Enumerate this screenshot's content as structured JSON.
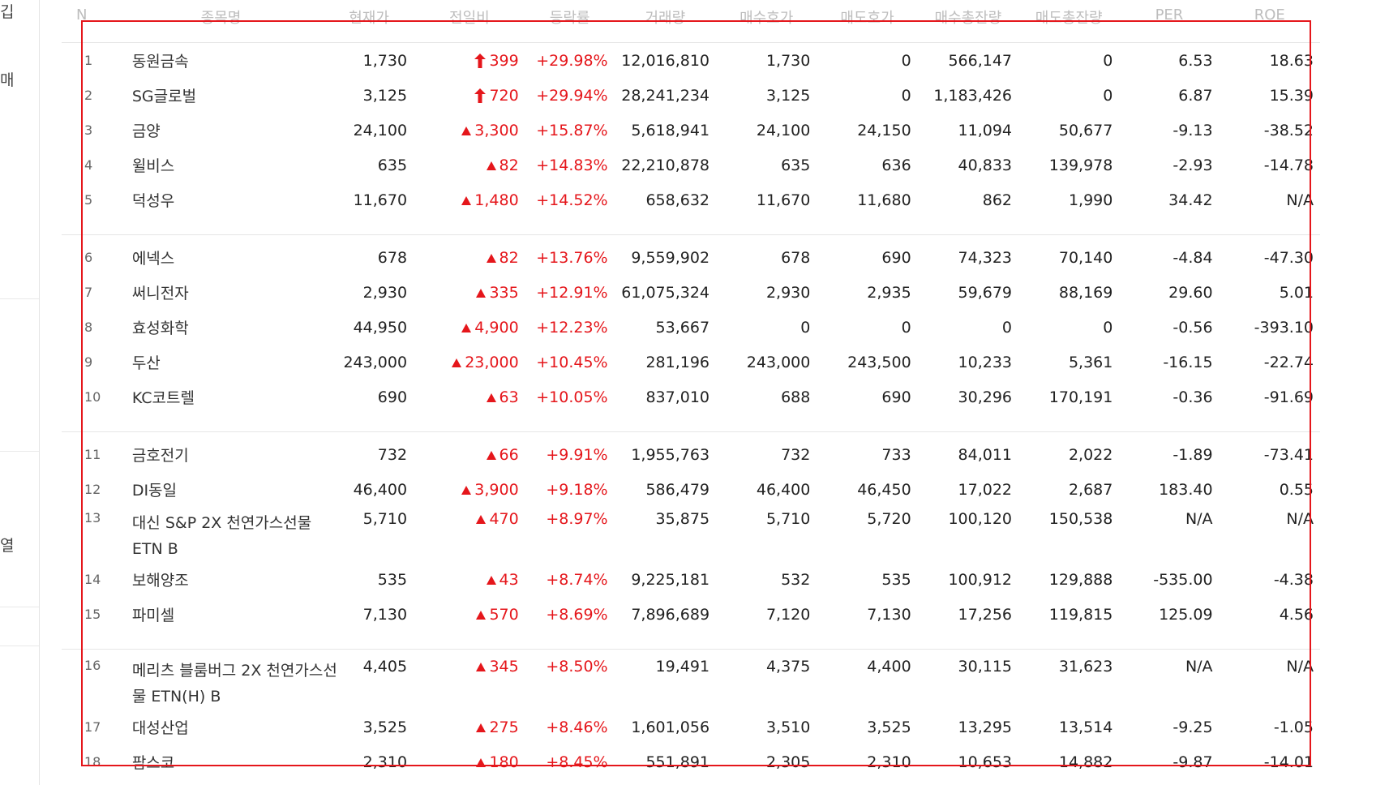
{
  "left_panel": {
    "fragments": [
      "깁",
      "매",
      "열"
    ]
  },
  "columns": [
    "N",
    "종목명",
    "현재가",
    "전일비",
    "등락률",
    "거래량",
    "매수호가",
    "매도호가",
    "매수총잔량",
    "매도총잔량",
    "PER",
    "ROE"
  ],
  "colors": {
    "up": "#e5161b",
    "highlight": "#e5161b",
    "header_text": "#bdbdbd"
  },
  "groups": [
    [
      {
        "n": "1",
        "name": "동원금속",
        "price": "1,730",
        "change": "399",
        "change_icon": "limit-up-arrow-icon",
        "rate": "+29.98%",
        "volume": "12,016,810",
        "bid": "1,730",
        "ask": "0",
        "bid_qty": "566,147",
        "ask_qty": "0",
        "per": "6.53",
        "roe": "18.63"
      },
      {
        "n": "2",
        "name": "SG글로벌",
        "price": "3,125",
        "change": "720",
        "change_icon": "limit-up-arrow-icon",
        "rate": "+29.94%",
        "volume": "28,241,234",
        "bid": "3,125",
        "ask": "0",
        "bid_qty": "1,183,426",
        "ask_qty": "0",
        "per": "6.87",
        "roe": "15.39"
      },
      {
        "n": "3",
        "name": "금양",
        "price": "24,100",
        "change": "3,300",
        "change_icon": "up-triangle-icon",
        "rate": "+15.87%",
        "volume": "5,618,941",
        "bid": "24,100",
        "ask": "24,150",
        "bid_qty": "11,094",
        "ask_qty": "50,677",
        "per": "-9.13",
        "roe": "-38.52"
      },
      {
        "n": "4",
        "name": "윌비스",
        "price": "635",
        "change": "82",
        "change_icon": "up-triangle-icon",
        "rate": "+14.83%",
        "volume": "22,210,878",
        "bid": "635",
        "ask": "636",
        "bid_qty": "40,833",
        "ask_qty": "139,978",
        "per": "-2.93",
        "roe": "-14.78"
      },
      {
        "n": "5",
        "name": "덕성우",
        "price": "11,670",
        "change": "1,480",
        "change_icon": "up-triangle-icon",
        "rate": "+14.52%",
        "volume": "658,632",
        "bid": "11,670",
        "ask": "11,680",
        "bid_qty": "862",
        "ask_qty": "1,990",
        "per": "34.42",
        "roe": "N/A"
      }
    ],
    [
      {
        "n": "6",
        "name": "에넥스",
        "price": "678",
        "change": "82",
        "change_icon": "up-triangle-icon",
        "rate": "+13.76%",
        "volume": "9,559,902",
        "bid": "678",
        "ask": "690",
        "bid_qty": "74,323",
        "ask_qty": "70,140",
        "per": "-4.84",
        "roe": "-47.30"
      },
      {
        "n": "7",
        "name": "써니전자",
        "price": "2,930",
        "change": "335",
        "change_icon": "up-triangle-icon",
        "rate": "+12.91%",
        "volume": "61,075,324",
        "bid": "2,930",
        "ask": "2,935",
        "bid_qty": "59,679",
        "ask_qty": "88,169",
        "per": "29.60",
        "roe": "5.01"
      },
      {
        "n": "8",
        "name": "효성화학",
        "price": "44,950",
        "change": "4,900",
        "change_icon": "up-triangle-icon",
        "rate": "+12.23%",
        "volume": "53,667",
        "bid": "0",
        "ask": "0",
        "bid_qty": "0",
        "ask_qty": "0",
        "per": "-0.56",
        "roe": "-393.10"
      },
      {
        "n": "9",
        "name": "두산",
        "price": "243,000",
        "change": "23,000",
        "change_icon": "up-triangle-icon",
        "rate": "+10.45%",
        "volume": "281,196",
        "bid": "243,000",
        "ask": "243,500",
        "bid_qty": "10,233",
        "ask_qty": "5,361",
        "per": "-16.15",
        "roe": "-22.74"
      },
      {
        "n": "10",
        "name": "KC코트렐",
        "price": "690",
        "change": "63",
        "change_icon": "up-triangle-icon",
        "rate": "+10.05%",
        "volume": "837,010",
        "bid": "688",
        "ask": "690",
        "bid_qty": "30,296",
        "ask_qty": "170,191",
        "per": "-0.36",
        "roe": "-91.69"
      }
    ],
    [
      {
        "n": "11",
        "name": "금호전기",
        "price": "732",
        "change": "66",
        "change_icon": "up-triangle-icon",
        "rate": "+9.91%",
        "volume": "1,955,763",
        "bid": "732",
        "ask": "733",
        "bid_qty": "84,011",
        "ask_qty": "2,022",
        "per": "-1.89",
        "roe": "-73.41"
      },
      {
        "n": "12",
        "name": "DI동일",
        "price": "46,400",
        "change": "3,900",
        "change_icon": "up-triangle-icon",
        "rate": "+9.18%",
        "volume": "586,479",
        "bid": "46,400",
        "ask": "46,450",
        "bid_qty": "17,022",
        "ask_qty": "2,687",
        "per": "183.40",
        "roe": "0.55"
      },
      {
        "n": "13",
        "name": "대신 S&P 2X 천연가스선물 ETN B",
        "price": "5,710",
        "change": "470",
        "change_icon": "up-triangle-icon",
        "rate": "+8.97%",
        "volume": "35,875",
        "bid": "5,710",
        "ask": "5,720",
        "bid_qty": "100,120",
        "ask_qty": "150,538",
        "per": "N/A",
        "roe": "N/A",
        "tall": true
      },
      {
        "n": "14",
        "name": "보해양조",
        "price": "535",
        "change": "43",
        "change_icon": "up-triangle-icon",
        "rate": "+8.74%",
        "volume": "9,225,181",
        "bid": "532",
        "ask": "535",
        "bid_qty": "100,912",
        "ask_qty": "129,888",
        "per": "-535.00",
        "roe": "-4.38"
      },
      {
        "n": "15",
        "name": "파미셀",
        "price": "7,130",
        "change": "570",
        "change_icon": "up-triangle-icon",
        "rate": "+8.69%",
        "volume": "7,896,689",
        "bid": "7,120",
        "ask": "7,130",
        "bid_qty": "17,256",
        "ask_qty": "119,815",
        "per": "125.09",
        "roe": "4.56"
      }
    ],
    [
      {
        "n": "16",
        "name": "메리츠 블룸버그 2X 천연가스선물 ETN(H) B",
        "price": "4,405",
        "change": "345",
        "change_icon": "up-triangle-icon",
        "rate": "+8.50%",
        "volume": "19,491",
        "bid": "4,375",
        "ask": "4,400",
        "bid_qty": "30,115",
        "ask_qty": "31,623",
        "per": "N/A",
        "roe": "N/A",
        "tall": true
      },
      {
        "n": "17",
        "name": "대성산업",
        "price": "3,525",
        "change": "275",
        "change_icon": "up-triangle-icon",
        "rate": "+8.46%",
        "volume": "1,601,056",
        "bid": "3,510",
        "ask": "3,525",
        "bid_qty": "13,295",
        "ask_qty": "13,514",
        "per": "-9.25",
        "roe": "-1.05"
      },
      {
        "n": "18",
        "name": "팜스코",
        "price": "2,310",
        "change": "180",
        "change_icon": "up-triangle-icon",
        "rate": "+8.45%",
        "volume": "551,891",
        "bid": "2,305",
        "ask": "2,310",
        "bid_qty": "10,653",
        "ask_qty": "14,882",
        "per": "-9.87",
        "roe": "-14.01"
      }
    ]
  ]
}
